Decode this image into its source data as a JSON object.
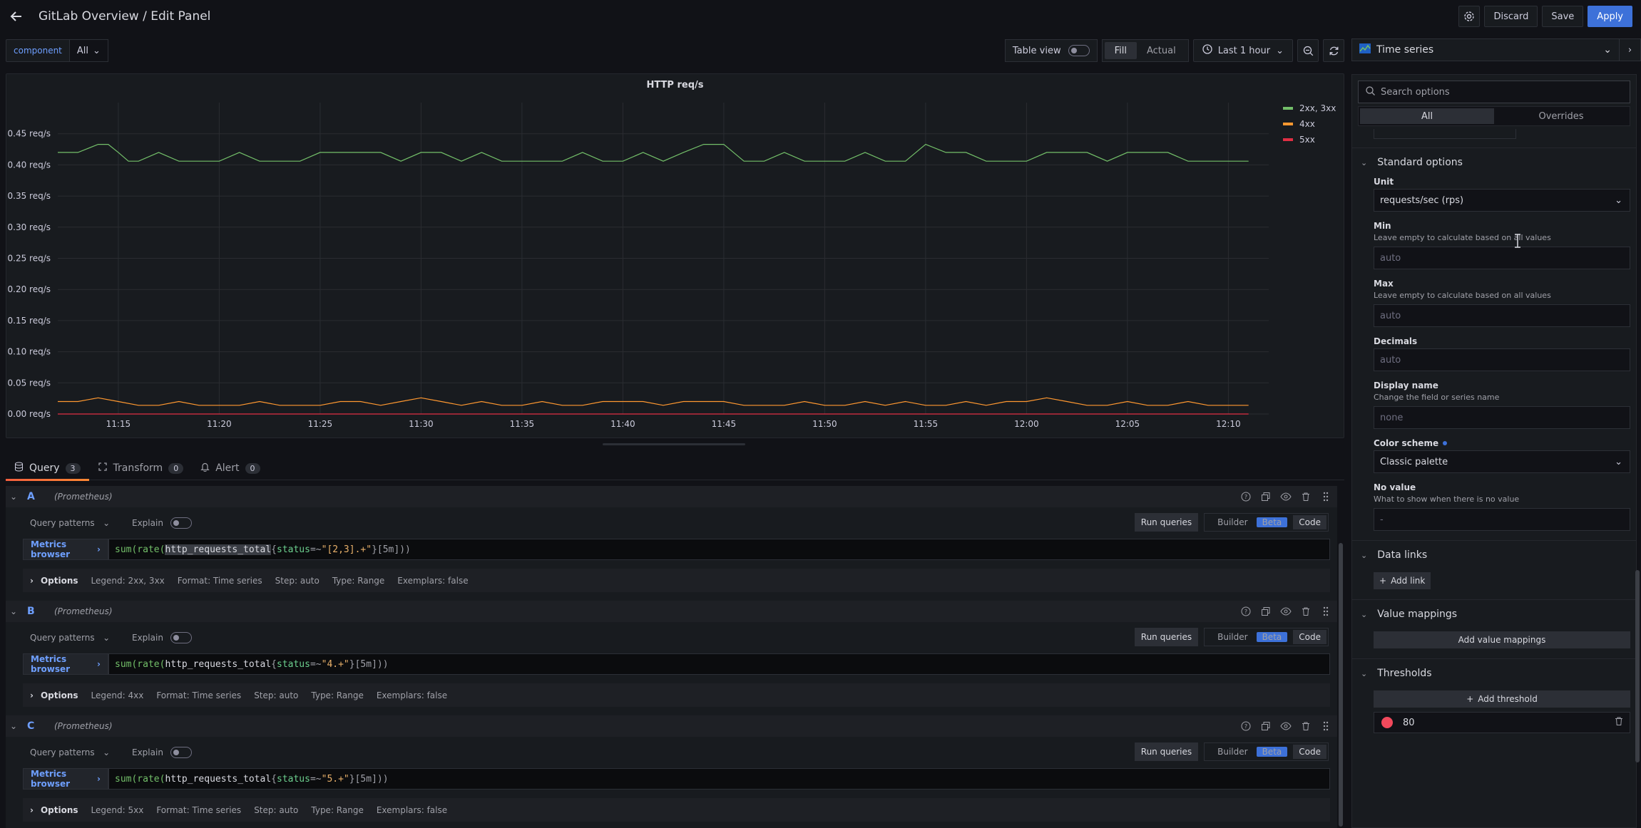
{
  "header": {
    "title": "GitLab Overview / Edit Panel",
    "discard_label": "Discard",
    "save_label": "Save",
    "apply_label": "Apply"
  },
  "toolbar": {
    "variable_label": "component",
    "variable_value": "All",
    "table_view_label": "Table view",
    "fill_label": "Fill",
    "actual_label": "Actual",
    "time_range": "Last 1 hour"
  },
  "panel": {
    "title": "HTTP req/s"
  },
  "chart_data": {
    "type": "line",
    "title": "HTTP req/s",
    "xlabel": "",
    "ylabel": "",
    "y_tick_labels": [
      "0.00 req/s",
      "0.05 req/s",
      "0.10 req/s",
      "0.15 req/s",
      "0.20 req/s",
      "0.25 req/s",
      "0.30 req/s",
      "0.35 req/s",
      "0.40 req/s",
      "0.45 req/s"
    ],
    "y_ticks": [
      0,
      0.05,
      0.1,
      0.15,
      0.2,
      0.25,
      0.3,
      0.35,
      0.4,
      0.45
    ],
    "ylim": [
      0,
      0.5
    ],
    "x_tick_labels": [
      "11:15",
      "11:20",
      "11:25",
      "11:30",
      "11:35",
      "11:40",
      "11:45",
      "11:50",
      "11:55",
      "12:00",
      "12:05",
      "12:10"
    ],
    "x_ticks_min": [
      15,
      20,
      25,
      30,
      35,
      40,
      45,
      50,
      55,
      60,
      65,
      70
    ],
    "xlim_min": [
      12,
      72
    ],
    "grid": true,
    "legend_position": "top-right",
    "series": [
      {
        "name": "2xx, 3xx",
        "color": "#73bf69",
        "x_min": [
          12,
          13,
          14,
          14.5,
          15,
          15.5,
          16,
          17,
          18,
          19,
          20,
          21,
          22,
          23,
          24,
          25,
          26,
          27,
          28,
          29,
          30,
          31,
          32,
          33,
          34,
          35,
          36,
          37,
          38,
          39,
          40,
          41,
          42,
          43,
          44,
          45,
          46,
          47,
          48,
          49,
          50,
          51,
          52,
          53,
          54,
          55,
          56,
          57,
          58,
          59,
          60,
          61,
          62,
          63,
          64,
          65,
          66,
          67,
          68,
          69,
          70,
          71
        ],
        "values": [
          0.42,
          0.42,
          0.433,
          0.433,
          0.42,
          0.406,
          0.406,
          0.42,
          0.406,
          0.406,
          0.406,
          0.42,
          0.406,
          0.406,
          0.406,
          0.42,
          0.42,
          0.42,
          0.42,
          0.406,
          0.42,
          0.42,
          0.406,
          0.42,
          0.406,
          0.406,
          0.406,
          0.406,
          0.42,
          0.406,
          0.406,
          0.42,
          0.406,
          0.42,
          0.433,
          0.433,
          0.406,
          0.406,
          0.42,
          0.406,
          0.406,
          0.406,
          0.42,
          0.406,
          0.406,
          0.433,
          0.42,
          0.42,
          0.406,
          0.406,
          0.406,
          0.42,
          0.42,
          0.42,
          0.406,
          0.42,
          0.42,
          0.42,
          0.406,
          0.406,
          0.406,
          0.406
        ]
      },
      {
        "name": "4xx",
        "color": "#ff9830",
        "x_min": [
          12,
          13,
          14,
          15,
          16,
          17,
          18,
          19,
          20,
          21,
          22,
          23,
          24,
          25,
          26,
          27,
          28,
          29,
          30,
          31,
          32,
          33,
          34,
          35,
          36,
          37,
          38,
          39,
          40,
          41,
          42,
          43,
          44,
          45,
          46,
          47,
          48,
          49,
          50,
          51,
          52,
          53,
          54,
          55,
          56,
          57,
          58,
          59,
          60,
          61,
          62,
          63,
          64,
          65,
          66,
          67,
          68,
          69,
          70,
          71
        ],
        "values": [
          0.02,
          0.02,
          0.026,
          0.02,
          0.014,
          0.014,
          0.02,
          0.014,
          0.014,
          0.014,
          0.02,
          0.014,
          0.014,
          0.014,
          0.02,
          0.02,
          0.014,
          0.02,
          0.026,
          0.02,
          0.014,
          0.02,
          0.014,
          0.014,
          0.02,
          0.014,
          0.014,
          0.02,
          0.02,
          0.02,
          0.014,
          0.02,
          0.02,
          0.02,
          0.014,
          0.014,
          0.014,
          0.02,
          0.014,
          0.014,
          0.02,
          0.014,
          0.02,
          0.014,
          0.014,
          0.02,
          0.014,
          0.02,
          0.02,
          0.026,
          0.02,
          0.014,
          0.014,
          0.02,
          0.014,
          0.014,
          0.02,
          0.014,
          0.014,
          0.014
        ]
      },
      {
        "name": "5xx",
        "color": "#e02f44",
        "x_min": [
          12,
          71
        ],
        "values": [
          0.0,
          0.0
        ]
      }
    ]
  },
  "tabs": [
    {
      "label": "Query",
      "count": "3"
    },
    {
      "label": "Transform",
      "count": "0"
    },
    {
      "label": "Alert",
      "count": "0"
    }
  ],
  "queries": [
    {
      "letter": "A",
      "source": "(Prometheus)",
      "query_patterns": "Query patterns",
      "explain": "Explain",
      "run": "Run queries",
      "builder": "Builder",
      "beta": "Beta",
      "code": "Code",
      "metrics_browser": "Metrics browser",
      "expr": {
        "fn": "sum(rate(",
        "metric": "http_requests_total",
        "open": "{",
        "label": "status",
        "op": "=~",
        "value": "\"[2,3].+\"",
        "close": "}[5m]))"
      },
      "options": "Options",
      "legend": "Legend: 2xx, 3xx",
      "format": "Format: Time series",
      "step": "Step: auto",
      "type": "Type: Range",
      "exemplars": "Exemplars: false"
    },
    {
      "letter": "B",
      "source": "(Prometheus)",
      "query_patterns": "Query patterns",
      "explain": "Explain",
      "run": "Run queries",
      "builder": "Builder",
      "beta": "Beta",
      "code": "Code",
      "metrics_browser": "Metrics browser",
      "expr": {
        "fn": "sum(rate(",
        "metric": "http_requests_total",
        "open": "{",
        "label": "status",
        "op": "=~",
        "value": "\"4.+\"",
        "close": "}[5m]))"
      },
      "options": "Options",
      "legend": "Legend: 4xx",
      "format": "Format: Time series",
      "step": "Step: auto",
      "type": "Type: Range",
      "exemplars": "Exemplars: false"
    },
    {
      "letter": "C",
      "source": "(Prometheus)",
      "query_patterns": "Query patterns",
      "explain": "Explain",
      "run": "Run queries",
      "builder": "Builder",
      "beta": "Beta",
      "code": "Code",
      "metrics_browser": "Metrics browser",
      "expr": {
        "fn": "sum(rate(",
        "metric": "http_requests_total",
        "open": "{",
        "label": "status",
        "op": "=~",
        "value": "\"5.+\"",
        "close": "}[5m]))"
      },
      "options": "Options",
      "legend": "Legend: 5xx",
      "format": "Format: Time series",
      "step": "Step: auto",
      "type": "Type: Range",
      "exemplars": "Exemplars: false"
    }
  ],
  "sidebar": {
    "visualization": "Time series",
    "search_placeholder": "Search options",
    "all_label": "All",
    "overrides_label": "Overrides",
    "standard_options": {
      "title": "Standard options",
      "unit_label": "Unit",
      "unit_value": "requests/sec (rps)",
      "min_label": "Min",
      "min_desc": "Leave empty to calculate based on all values",
      "min_placeholder": "auto",
      "max_label": "Max",
      "max_desc": "Leave empty to calculate based on all values",
      "max_placeholder": "auto",
      "decimals_label": "Decimals",
      "decimals_placeholder": "auto",
      "display_name_label": "Display name",
      "display_name_desc": "Change the field or series name",
      "display_name_placeholder": "none",
      "color_scheme_label": "Color scheme",
      "color_scheme_value": "Classic palette",
      "no_value_label": "No value",
      "no_value_desc": "What to show when there is no value",
      "no_value_placeholder": "-"
    },
    "data_links": {
      "title": "Data links",
      "add_label": "Add link"
    },
    "value_mappings": {
      "title": "Value mappings",
      "add_label": "Add value mappings"
    },
    "thresholds": {
      "title": "Thresholds",
      "add_label": "Add threshold",
      "value": "80",
      "color": "#f2495c"
    }
  }
}
